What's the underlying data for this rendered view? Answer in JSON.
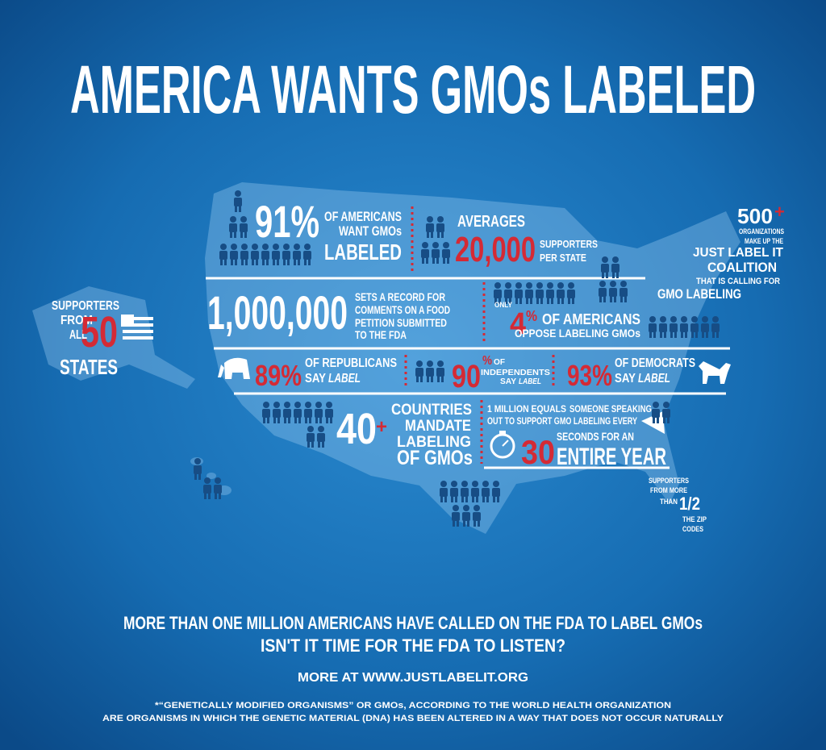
{
  "title": "AMERICA WANTS GMOs LABELED",
  "americans": {
    "number": "91%",
    "lines": [
      "OF AMERICANS",
      "WANT GMOs",
      "LABELED"
    ]
  },
  "averages": {
    "label": "AVERAGES",
    "number": "20,000",
    "lines": [
      "SUPPORTERS",
      "PER STATE"
    ]
  },
  "coalition": {
    "number": "500",
    "plus": "+",
    "lines": [
      "ORGANIZATIONS",
      "MAKE UP THE",
      "JUST LABEL IT",
      "COALITION",
      "THAT IS CALLING FOR",
      "GMO LABELING"
    ]
  },
  "states": {
    "lines": [
      "SUPPORTERS",
      "FROM",
      "ALL"
    ],
    "number": "50",
    "last": "STATES"
  },
  "record": {
    "number": "1,000,000",
    "lines": [
      "SETS A RECORD FOR",
      "COMMENTS ON A FOOD",
      "PETITION SUBMITTED",
      "TO THE FDA"
    ]
  },
  "oppose": {
    "prefix": "ONLY",
    "number": "4",
    "unit": "%",
    "lines": [
      "OF AMERICANS",
      "OPPOSE LABELING GMOs"
    ]
  },
  "republicans": {
    "number": "89%",
    "line": "OF REPUBLICANS",
    "say": "SAY",
    "label": "LABEL"
  },
  "independents": {
    "number": "90",
    "unit": "%",
    "lines": [
      "OF",
      "INDEPENDENTS"
    ],
    "say": "SAY",
    "label": "LABEL"
  },
  "democrats": {
    "number": "93%",
    "line": "OF DEMOCRATS",
    "say": "SAY",
    "label": "LABEL"
  },
  "countries": {
    "number": "40",
    "plus": "+",
    "lines": [
      "COUNTRIES",
      "MANDATE",
      "LABELING",
      "OF GMOs"
    ]
  },
  "seconds": {
    "lead": "1 MILLION EQUALS",
    "lines": [
      "SOMEONE SPEAKING",
      "OUT TO SUPPORT GMO LABELING EVERY",
      "SECONDS FOR AN",
      "ENTIRE YEAR"
    ],
    "number": "30"
  },
  "zip": {
    "lines": [
      "SUPPORTERS",
      "FROM MORE",
      "THAN"
    ],
    "number": "1/2",
    "after": [
      "THE ZIP",
      "CODES"
    ]
  },
  "footer": {
    "headline": "MORE THAN ONE MILLION AMERICANS HAVE CALLED ON THE FDA TO LABEL GMOs",
    "question": "ISN'T IT TIME FOR THE FDA TO LISTEN?",
    "link": "MORE AT WWW.JUSTLABELIT.ORG",
    "note": [
      "*“GENETICALLY MODIFIED ORGANISMS” OR GMOs, ACCORDING TO THE WORLD HEALTH ORGANIZATION",
      "ARE ORGANISMS IN WHICH THE GENETIC MATERIAL (DNA) HAS BEEN ALTERED IN A WAY THAT DOES NOT OCCUR NATURALLY"
    ]
  }
}
